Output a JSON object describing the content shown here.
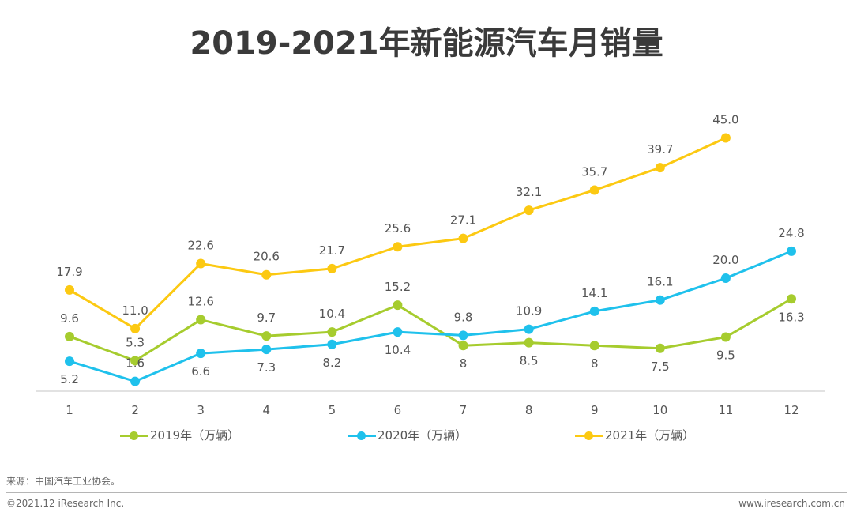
{
  "title": "2019-2021年新能源汽车月销量",
  "chart_data": {
    "type": "line",
    "title": "2019-2021年新能源汽车月销量",
    "xlabel": "",
    "ylabel": "",
    "x": [
      "1",
      "2",
      "3",
      "4",
      "5",
      "6",
      "7",
      "8",
      "9",
      "10",
      "11",
      "12"
    ],
    "ylim": [
      0,
      46
    ],
    "grid": false,
    "legend_position": "bottom",
    "series": [
      {
        "name": "2019年（万辆）",
        "color": "#a6cc2e",
        "values": [
          9.6,
          5.3,
          12.6,
          9.7,
          10.4,
          15.2,
          8,
          8.5,
          8,
          7.5,
          9.5,
          16.3
        ],
        "labels": [
          "9.6",
          "5.3",
          "12.6",
          "9.7",
          "10.4",
          "15.2",
          "8",
          "8.5",
          "8",
          "7.5",
          "9.5",
          "16.3"
        ],
        "label_pos": [
          "above",
          "above",
          "above",
          "above",
          "above",
          "above",
          "below",
          "below",
          "below",
          "below",
          "below",
          "below"
        ]
      },
      {
        "name": "2020年（万辆）",
        "color": "#1fc1ec",
        "values": [
          5.2,
          1.6,
          6.6,
          7.3,
          8.2,
          10.4,
          9.8,
          10.9,
          14.1,
          16.1,
          20.0,
          24.8
        ],
        "labels": [
          "5.2",
          "1.6",
          "6.6",
          "7.3",
          "8.2",
          "10.4",
          "9.8",
          "10.9",
          "14.1",
          "16.1",
          "20.0",
          "24.8"
        ],
        "label_pos": [
          "below",
          "above",
          "below",
          "below",
          "below",
          "below",
          "above",
          "above",
          "above",
          "above",
          "above",
          "above"
        ]
      },
      {
        "name": "2021年（万辆）",
        "color": "#fcc912",
        "values": [
          17.9,
          11.0,
          22.6,
          20.6,
          21.7,
          25.6,
          27.1,
          32.1,
          35.7,
          39.7,
          45.0,
          null
        ],
        "labels": [
          "17.9",
          "11.0",
          "22.6",
          "20.6",
          "21.7",
          "25.6",
          "27.1",
          "32.1",
          "35.7",
          "39.7",
          "45.0",
          null
        ],
        "label_pos": [
          "above",
          "above",
          "above",
          "above",
          "above",
          "above",
          "above",
          "above",
          "above",
          "above",
          "above",
          "above"
        ]
      }
    ]
  },
  "legend": [
    {
      "label": "2019年（万辆）",
      "color": "#a6cc2e"
    },
    {
      "label": "2020年（万辆）",
      "color": "#1fc1ec"
    },
    {
      "label": "2021年（万辆）",
      "color": "#fcc912"
    }
  ],
  "footer": {
    "source": "来源：中国汽车工业协会。",
    "copyright": "©2021.12 iResearch Inc.",
    "website": "www.iresearch.com.cn"
  }
}
